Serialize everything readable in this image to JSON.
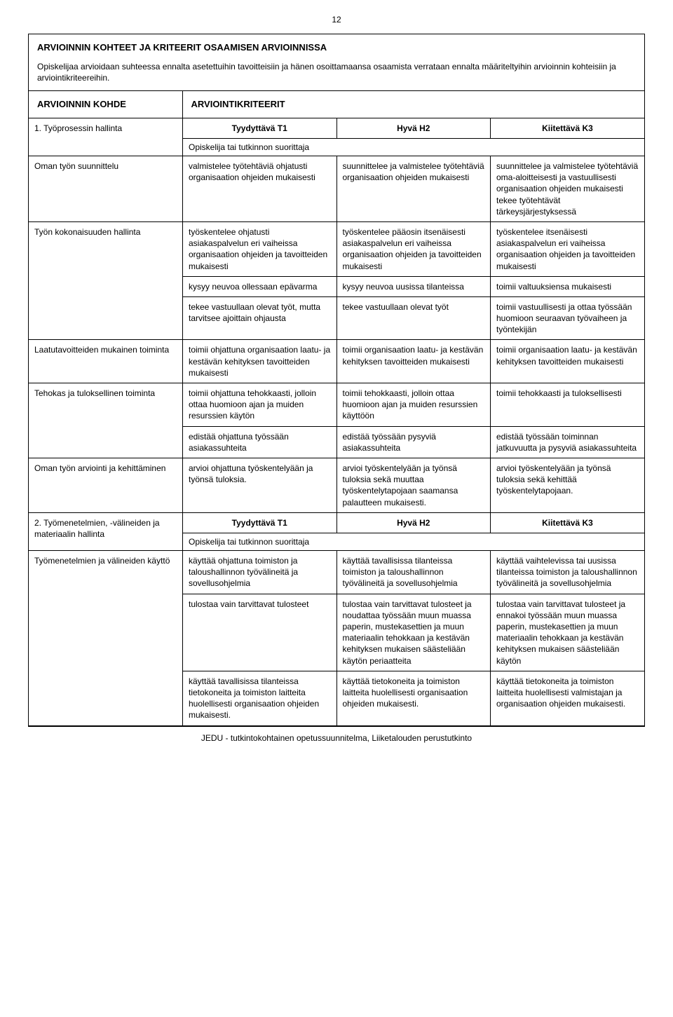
{
  "page_number": "12",
  "title": "ARVIOINNIN KOHTEET JA KRITEERIT OSAAMISEN ARVIOINNISSA",
  "intro": "Opiskelijaa arvioidaan suhteessa ennalta asetettuihin tavoitteisiin ja hänen osoittamaansa osaamista verrataan ennalta määriteltyihin arvioinnin kohteisiin ja arviointikriteereihin.",
  "kohde_label": "ARVIOINNIN KOHDE",
  "kriteerit_label": "ARVIOINTIKRITEERIT",
  "level_t1": "Tyydyttävä T1",
  "level_h2": "Hyvä H2",
  "level_k3": "Kiitettävä K3",
  "suorittaja": "Opiskelija tai tutkinnon suorittaja",
  "section1": {
    "heading": "1. Työprosessin hallinta",
    "rows": [
      {
        "label": "Oman työn suunnittelu",
        "t1": "valmistelee työtehtäviä ohjatusti organisaation ohjeiden mukaisesti",
        "h2": "suunnittelee ja valmistelee työtehtäviä organisaation ohjeiden mukaisesti",
        "k3": "suunnittelee ja valmistelee työtehtäviä oma-aloitteisesti ja vastuullisesti organisaation ohjeiden mukaisesti tekee työtehtävät tärkeysjärjestyksessä"
      },
      {
        "label": "Työn kokonaisuuden hallinta",
        "t1": "työskentelee ohjatusti asiakaspalvelun eri vaiheissa organisaation ohjeiden ja tavoitteiden mukaisesti",
        "h2": "työskentelee pääosin itsenäisesti asiakaspalvelun eri vaiheissa organisaation ohjeiden ja tavoitteiden mukaisesti",
        "k3": "työskentelee itsenäisesti asiakaspalvelun eri vaiheissa organisaation ohjeiden ja tavoitteiden mukaisesti"
      },
      {
        "label": "",
        "t1": "kysyy neuvoa ollessaan epävarma",
        "h2": "kysyy neuvoa uusissa tilanteissa",
        "k3": "toimii valtuuksiensa mukaisesti"
      },
      {
        "label": "",
        "t1": "tekee vastuullaan olevat työt, mutta tarvitsee ajoittain ohjausta",
        "h2": "tekee vastuullaan olevat työt",
        "k3": "toimii vastuullisesti ja ottaa työssään huomioon seuraavan työvaiheen ja työntekijän"
      },
      {
        "label": "Laatutavoitteiden mukainen toiminta",
        "t1": "toimii ohjattuna organisaation laatu- ja kestävän kehityksen tavoitteiden mukaisesti",
        "h2": "toimii organisaation laatu- ja kestävän kehityksen tavoitteiden mukaisesti",
        "k3": "toimii organisaation laatu- ja kestävän kehityksen tavoitteiden mukaisesti"
      },
      {
        "label": "Tehokas ja tuloksellinen toiminta",
        "t1": "toimii ohjattuna tehokkaasti, jolloin ottaa huomioon ajan ja muiden resurssien käytön",
        "h2": "toimii tehokkaasti, jolloin ottaa huomioon ajan ja muiden resurssien käyttöön",
        "k3": "toimii tehokkaasti ja tuloksellisesti"
      },
      {
        "label": "",
        "t1": "edistää ohjattuna työssään asiakassuhteita",
        "h2": "edistää työssään pysyviä asiakassuhteita",
        "k3": "edistää työssään toiminnan jatkuvuutta ja pysyviä asiakassuhteita"
      },
      {
        "label": "Oman työn arviointi ja kehittäminen",
        "t1": "arvioi ohjattuna työskentelyään ja työnsä tuloksia.",
        "h2": "arvioi työskentelyään ja työnsä tuloksia sekä muuttaa työskentelytapojaan saamansa palautteen mukaisesti.",
        "k3": "arvioi työskentelyään ja työnsä tuloksia sekä kehittää työskentelytapojaan."
      }
    ]
  },
  "section2": {
    "heading": "2. Työmenetelmien, -välineiden ja materiaalin hallinta",
    "rows": [
      {
        "label": "Työmenetelmien ja välineiden käyttö",
        "t1": "käyttää ohjattuna toimiston ja taloushallinnon työvälineitä ja sovellusohjelmia",
        "h2": "käyttää tavallisissa tilanteissa toimiston ja taloushallinnon työvälineitä ja sovellusohjelmia",
        "k3": "käyttää vaihtelevissa tai uusissa tilanteissa toimiston ja taloushallinnon työvälineitä ja sovellusohjelmia"
      },
      {
        "label": "",
        "t1": "tulostaa vain tarvittavat tulosteet",
        "h2": "tulostaa vain tarvittavat tulosteet ja noudattaa työssään muun muassa paperin, mustekasettien ja muun materiaalin tehokkaan ja kestävän kehityksen mukaisen säästeliään käytön periaatteita",
        "k3": "tulostaa vain tarvittavat tulosteet ja ennakoi työssään muun muassa paperin, mustekasettien ja muun materiaalin tehokkaan ja kestävän kehityksen mukaisen säästeliään käytön"
      },
      {
        "label": "",
        "t1": "käyttää tavallisissa tilanteissa tietokoneita ja toimiston laitteita huolellisesti organisaation ohjeiden mukaisesti.",
        "h2": "käyttää tietokoneita ja toimiston laitteita huolellisesti organisaation ohjeiden mukaisesti.",
        "k3": "käyttää tietokoneita ja toimiston laitteita huolellisesti valmistajan ja organisaation ohjeiden mukaisesti."
      }
    ]
  },
  "footer": "JEDU - tutkintokohtainen opetussuunnitelma, Liiketalouden perustutkinto"
}
